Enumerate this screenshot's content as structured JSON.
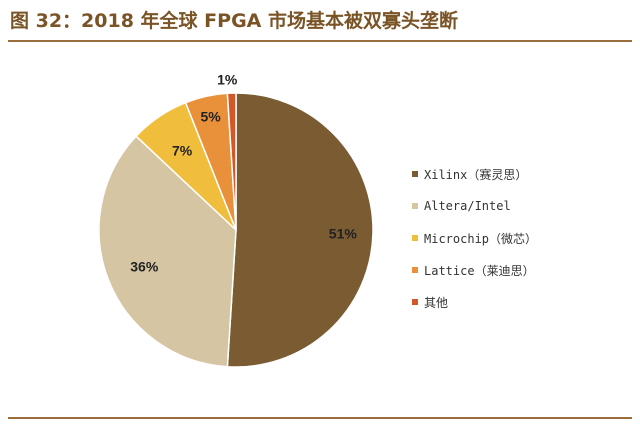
{
  "title": "图 32：2018 年全球 FPGA 市场基本被双寡头垄断",
  "chart_data": {
    "type": "pie",
    "title": "",
    "legend_position": "right",
    "start_angle": "top, clockwise",
    "slices": [
      {
        "label": "Xilinx（赛灵思）",
        "value": 51,
        "value_label": "51%",
        "color": "#7b5b32"
      },
      {
        "label": "Altera/Intel",
        "value": 36,
        "value_label": "36%",
        "color": "#d5c5a3"
      },
      {
        "label": "Microchip（微芯）",
        "value": 7,
        "value_label": "7%",
        "color": "#f0bd3c"
      },
      {
        "label": "Lattice（莱迪思）",
        "value": 5,
        "value_label": "5%",
        "color": "#e8913a"
      },
      {
        "label": "其他",
        "value": 1,
        "value_label": "1%",
        "color": "#d2582a"
      }
    ]
  }
}
